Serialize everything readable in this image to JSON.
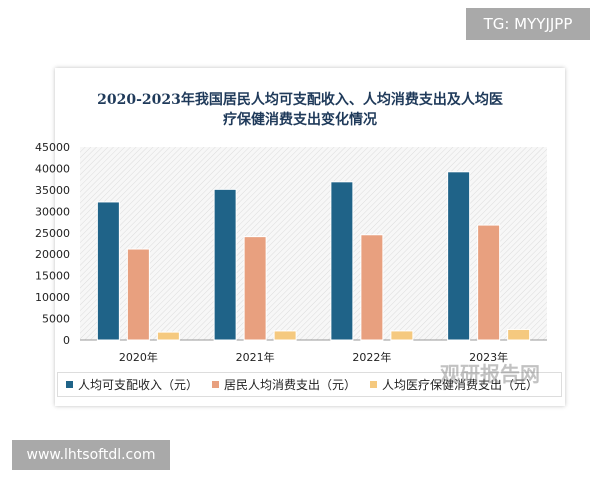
{
  "watermark_top": "TG: MYYJJPP",
  "watermark_bottom": "www.lhtsoftdl.com",
  "source_watermark": "观研报告网",
  "chart_data": {
    "type": "bar",
    "title_line1": "2020-2023年我国居民人均可支配收入、人均消费支出及人均医",
    "title_line2": "疗保健消费支出变化情况",
    "categories": [
      "2020年",
      "2021年",
      "2022年",
      "2023年"
    ],
    "series": [
      {
        "name": "人均可支配收入（元）",
        "color": "#1f6388",
        "values": [
          32189,
          35128,
          36883,
          39218
        ]
      },
      {
        "name": "居民人均消费支出（元）",
        "color": "#e8a07f",
        "values": [
          21210,
          24100,
          24538,
          26796
        ]
      },
      {
        "name": "人均医疗保健消费支出（元）",
        "color": "#f5c97f",
        "values": [
          1843,
          2115,
          2120,
          2460
        ]
      }
    ],
    "yticks": [
      0,
      5000,
      10000,
      15000,
      20000,
      25000,
      30000,
      35000,
      40000,
      45000
    ],
    "ylim": [
      0,
      45000
    ],
    "legend": "bottom",
    "grid": false
  }
}
